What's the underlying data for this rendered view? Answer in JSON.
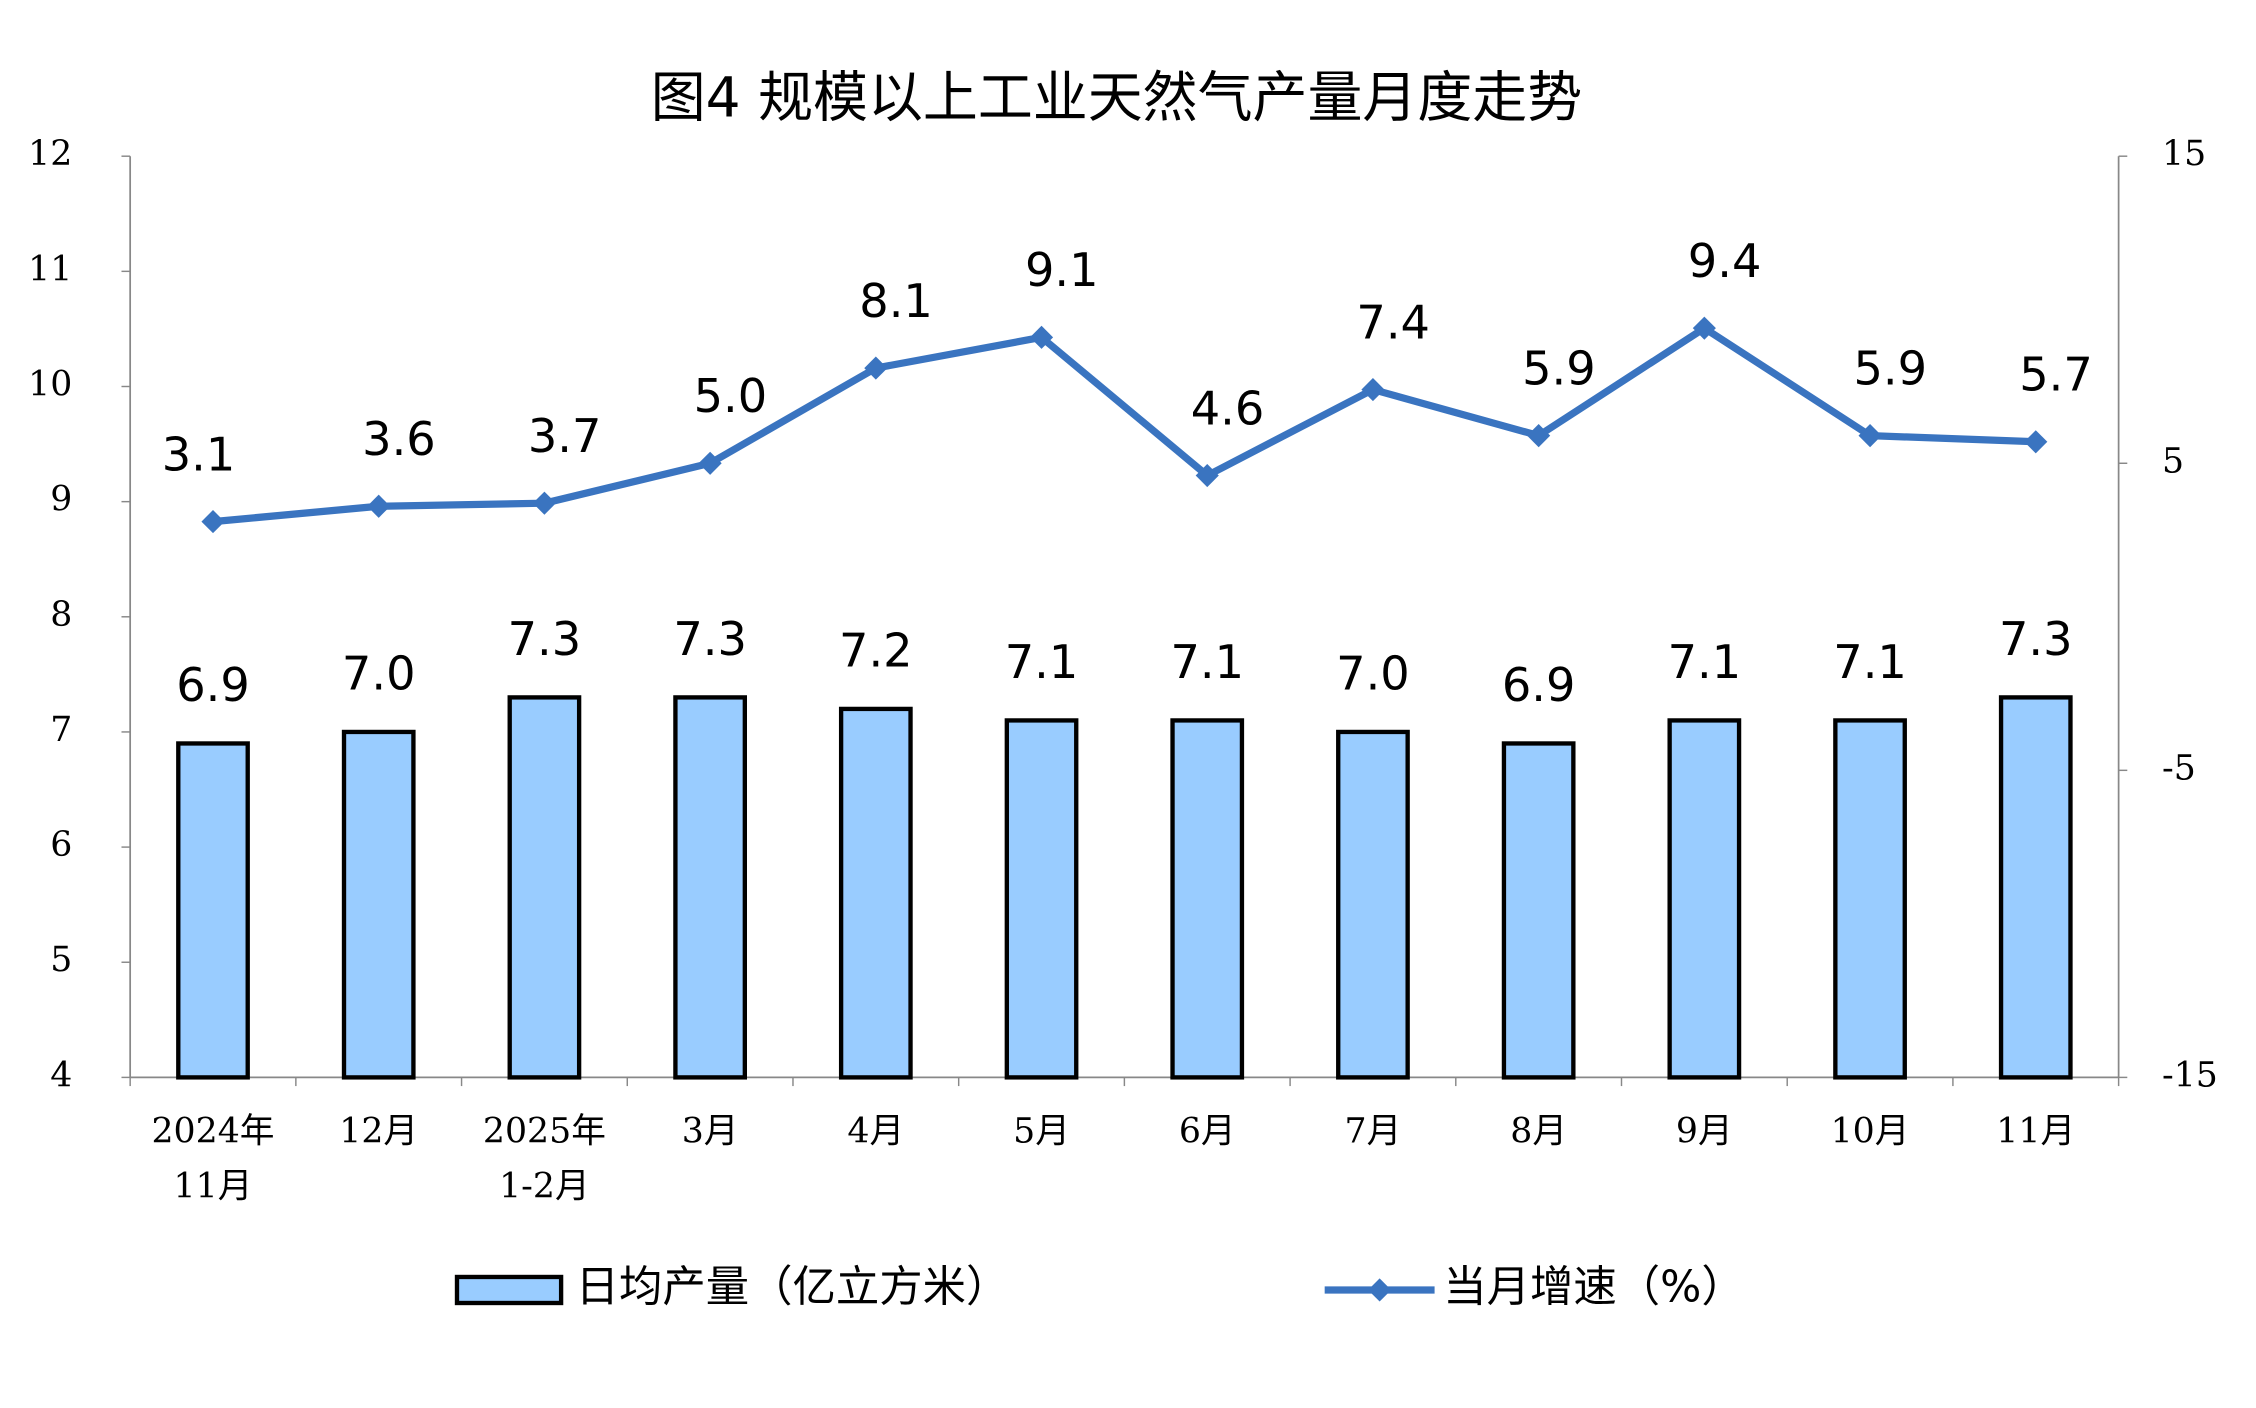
{
  "chart_data": {
    "type": "bar",
    "title": "图4  规模以上工业天然气产量月度走势",
    "categories": [
      "2024年\n11月",
      "12月",
      "2025年\n1-2月",
      "3月",
      "4月",
      "5月",
      "6月",
      "7月",
      "8月",
      "9月",
      "10月",
      "11月"
    ],
    "series": [
      {
        "name": "日均产量（亿立方米）",
        "type": "bar",
        "color": "#99ccff",
        "values": [
          6.9,
          7.0,
          7.3,
          7.3,
          7.2,
          7.1,
          7.1,
          7.0,
          6.9,
          7.1,
          7.1,
          7.3
        ],
        "value_labels": [
          "6.9",
          "7.0",
          "7.3",
          "7.3",
          "7.2",
          "7.1",
          "7.1",
          "7.0",
          "6.9",
          "7.1",
          "7.1",
          "7.3"
        ]
      },
      {
        "name": "当月增速（%）",
        "type": "line",
        "axis": "y2",
        "color": "#3a74c0",
        "values": [
          3.1,
          3.6,
          3.7,
          5.0,
          8.1,
          9.1,
          4.6,
          7.4,
          5.9,
          9.4,
          5.9,
          5.7
        ],
        "value_labels": [
          "3.1",
          "3.6",
          "3.7",
          "5.0",
          "8.1",
          "9.1",
          "4.6",
          "7.4",
          "5.9",
          "9.4",
          "5.9",
          "5.7"
        ]
      }
    ],
    "ylim": [
      4,
      12
    ],
    "yticks": [
      4,
      5,
      6,
      7,
      8,
      9,
      10,
      11,
      12
    ],
    "y2lim": [
      -15,
      15
    ],
    "y2ticks": [
      -15,
      -5,
      5,
      15
    ],
    "legend": "bottom",
    "grid": false
  }
}
